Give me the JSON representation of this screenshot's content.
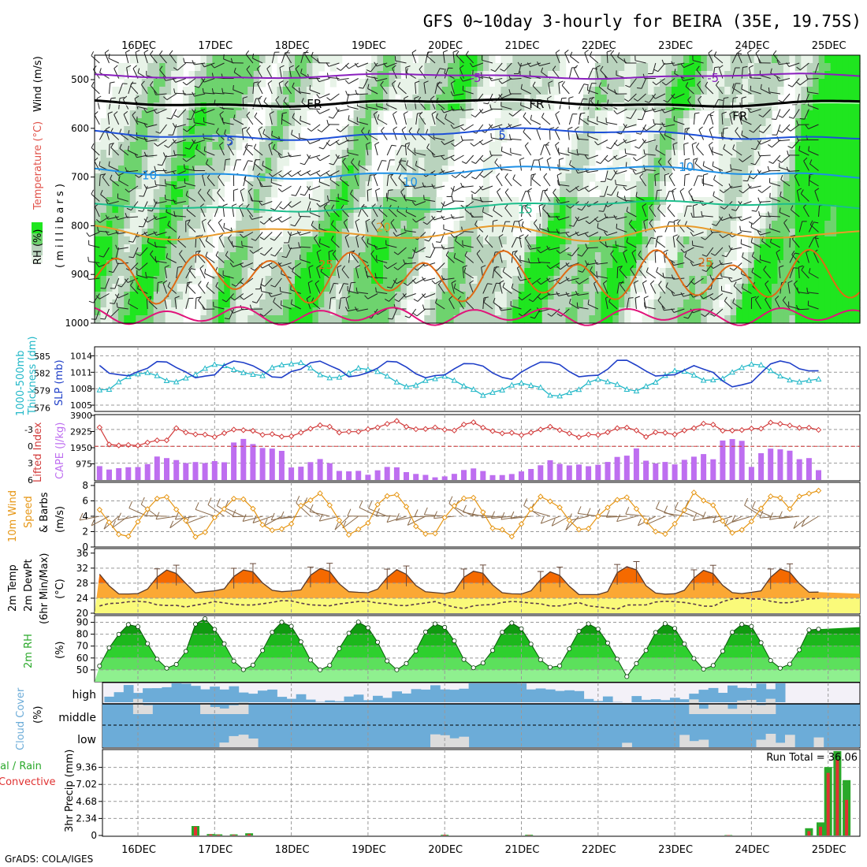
{
  "title": "GFS 0~10day 3-hourly for BEIRA (35E, 19.75S)",
  "credit": "GrADS: COLA/IGES",
  "date_labels": [
    "16DEC",
    "17DEC",
    "18DEC",
    "19DEC",
    "20DEC",
    "21DEC",
    "22DEC",
    "23DEC",
    "24DEC",
    "25DEC"
  ],
  "colors": {
    "rh_light": "#e8f3e8",
    "rh_mid": "#b9d3bd",
    "rh_green": "#6ed36e",
    "rh_bright": "#1fe61f",
    "temp_purple": "#8a1fbe",
    "temp_blue": "#1d4fd8",
    "temp_lblue": "#1e90e6",
    "temp_teal": "#1cbe8c",
    "temp_orange": "#e89a2a",
    "temp_dorange": "#e06a14",
    "temp_magenta": "#e0147a",
    "slp": "#1f3fc8",
    "thick": "#22b8c8",
    "li": "#d23a3a",
    "cape": "#be6ef0",
    "wind": "#e69614",
    "temp_red": "#e21e00",
    "temp_dark_orange": "#f56a00",
    "temp_light_orange": "#fba834",
    "temp_yellow": "#fafa7a",
    "cloud": "#6cacd8",
    "cloud_bg": "#f3f1f8",
    "cloud_gray": "#dcdcdc",
    "precip_total": "#2aa82a",
    "precip_conv": "#e03232"
  },
  "panels": {
    "upper": {
      "ylabel_rh": "RH (%)",
      "ylabel_temp": "Temperature (°C)",
      "ylabel_wind": "Wind (m/s)",
      "ylabel_units": "( m i l l i b a r s )",
      "levels": [
        500,
        600,
        700,
        800,
        900,
        1000
      ]
    },
    "slp": {
      "ylabel_left": "1000-500mb",
      "ylabel_left2": "Thickness (dm)",
      "ylabel_right": "SLP (mb)"
    },
    "li": {
      "ylabel_left": "Lifted Index",
      "ylabel_right": "CAPE (J/kg)"
    },
    "wind": {
      "ylabel1": "10m Wind",
      "ylabel2": "Speed",
      "ylabel3": "& Barbs",
      "ylabel4": "(m/s)"
    },
    "temp": {
      "ylabel1": "2m Temp",
      "ylabel2": "2m DewPt",
      "ylabel3": "(6hr Min/Max)",
      "ylabel4": "(°C)"
    },
    "rh": {
      "ylabel1": "2m RH",
      "ylabel2": "(%)"
    },
    "cloud": {
      "ylabel1": "Cloud Cover",
      "ylabel2": "(%)",
      "high": "high",
      "middle": "middle",
      "low": "low"
    },
    "precip": {
      "ylabel_left1": "tal / Rain",
      "ylabel_left2": "Convective",
      "ylabel_mid": "3hr Precip (mm)",
      "run_total": "Run Total = 36.06"
    }
  },
  "chart_data": {
    "type": "meteogram",
    "x_dates": [
      "16DEC",
      "17DEC",
      "18DEC",
      "19DEC",
      "20DEC",
      "21DEC",
      "22DEC",
      "23DEC",
      "24DEC",
      "25DEC"
    ],
    "upper_air": {
      "contour_labels": [
        {
          "label": "-5",
          "day": 4.4,
          "p": 497
        },
        {
          "label": "-5",
          "day": 7.5,
          "p": 497
        },
        {
          "label": "FR",
          "day": 2.3,
          "p": 550
        },
        {
          "label": "FR",
          "day": 5.2,
          "p": 550
        },
        {
          "label": "FR",
          "day": 7.85,
          "p": 575
        },
        {
          "label": "5",
          "day": 1.2,
          "p": 627
        },
        {
          "label": "5",
          "day": 4.75,
          "p": 614
        },
        {
          "label": "10",
          "day": 0.15,
          "p": 697
        },
        {
          "label": "10",
          "day": 3.55,
          "p": 710
        },
        {
          "label": "10",
          "day": 7.15,
          "p": 680
        },
        {
          "label": "15",
          "day": 5.05,
          "p": 766
        },
        {
          "label": "20",
          "day": 3.2,
          "p": 803
        },
        {
          "label": "25",
          "day": 2.45,
          "p": 880
        },
        {
          "label": "25",
          "day": 7.4,
          "p": 875
        }
      ]
    },
    "slp": {
      "yticks": [
        1005,
        1008,
        1011,
        1014
      ],
      "ylim": [
        1004,
        1015.5
      ]
    },
    "thickness": {
      "yticks": [
        576,
        579,
        582,
        585
      ],
      "ylim": [
        575.5,
        586.5
      ]
    },
    "lifted_index": {
      "yticks": [
        -3,
        0,
        3,
        6
      ],
      "ylim": [
        -5.5,
        6
      ]
    },
    "cape": {
      "yticks": [
        975,
        1950,
        2925,
        3900
      ],
      "ylim": [
        0,
        3900
      ]
    },
    "wind10m": {
      "yticks": [
        0,
        2,
        4,
        6,
        8
      ],
      "ylim": [
        0,
        8.3
      ]
    },
    "temp2m": {
      "yticks": [
        20,
        24,
        28,
        32,
        36
      ],
      "ylim": [
        20,
        37
      ]
    },
    "rh2m": {
      "yticks": [
        50,
        60,
        70,
        80,
        90
      ],
      "ylim": [
        40,
        95
      ]
    },
    "precip": {
      "yticks": [
        0,
        2.34,
        4.68,
        7.02,
        9.36
      ],
      "ylim": [
        0,
        11.7
      ],
      "bars": [
        {
          "day": 0.75,
          "total": 1.3,
          "conv": 1.2
        },
        {
          "day": 0.95,
          "total": 0.2,
          "conv": 0.15
        },
        {
          "day": 1.05,
          "total": 0.15,
          "conv": 0.1
        },
        {
          "day": 1.25,
          "total": 0.15,
          "conv": 0.1
        },
        {
          "day": 1.45,
          "total": 0.3,
          "conv": 0.2
        },
        {
          "day": 4.0,
          "total": 0.1,
          "conv": 0.1
        },
        {
          "day": 5.1,
          "total": 0.1,
          "conv": 0.05
        },
        {
          "day": 7.7,
          "total": 0.05,
          "conv": 0.05
        },
        {
          "day": 8.75,
          "total": 1.0,
          "conv": 0.6
        },
        {
          "day": 8.9,
          "total": 1.8,
          "conv": 1.2
        },
        {
          "day": 9.0,
          "total": 9.4,
          "conv": 8.6
        },
        {
          "day": 9.12,
          "total": 11.6,
          "conv": 10.4
        },
        {
          "day": 9.24,
          "total": 7.6,
          "conv": 4.9
        }
      ]
    }
  }
}
